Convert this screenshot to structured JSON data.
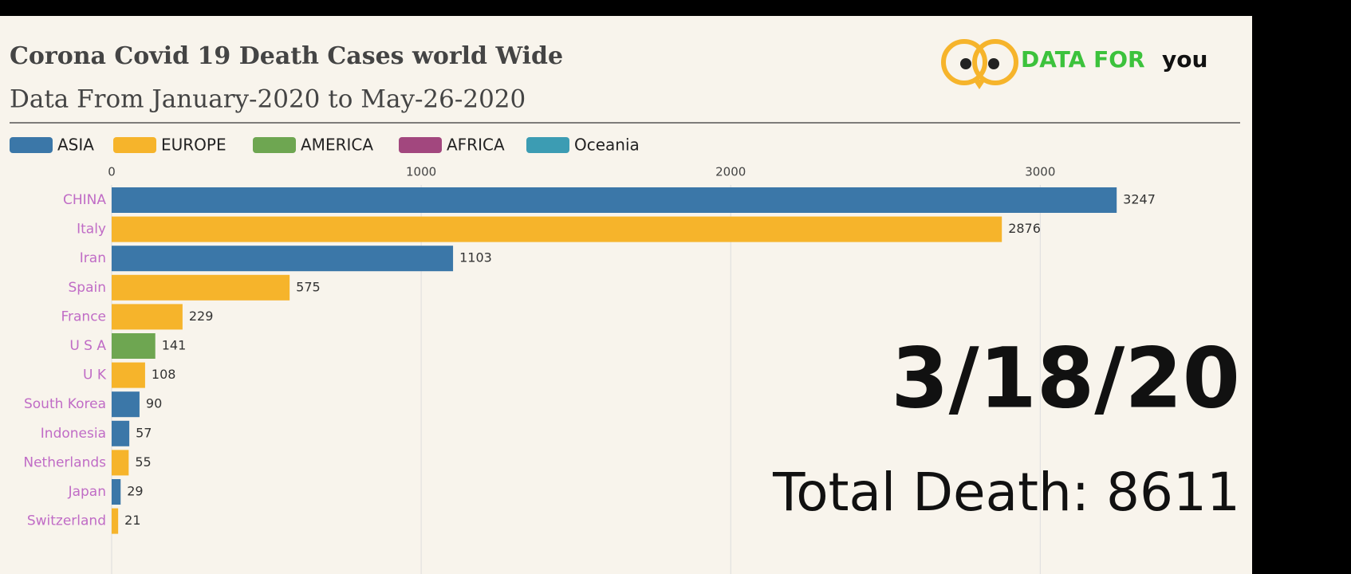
{
  "chart_data": {
    "type": "barh",
    "title": "Corona Covid 19 Death Cases world Wide",
    "subtitle": "Data From January-2020 to May-26-2020",
    "date": "3/18/20",
    "total": "Total Death: 8611",
    "logo": {
      "main": "DATA FOR",
      "tail": "you"
    },
    "categories": [
      "CHINA",
      "Italy",
      "Iran",
      "Spain",
      "France",
      "U S A",
      "U K",
      "South Korea",
      "Indonesia",
      "Netherlands",
      "Japan",
      "Switzerland"
    ],
    "series": [
      {
        "name": "ASIA",
        "color": "#3b77a8",
        "values": [
          3247,
          null,
          1103,
          null,
          null,
          null,
          null,
          90,
          57,
          null,
          29,
          null
        ]
      },
      {
        "name": "EUROPE",
        "color": "#f6b42b",
        "values": [
          null,
          2876,
          null,
          575,
          229,
          null,
          108,
          null,
          null,
          55,
          null,
          21
        ]
      },
      {
        "name": "AMERICA",
        "color": "#6ea651",
        "values": [
          null,
          null,
          null,
          null,
          null,
          141,
          null,
          null,
          null,
          null,
          null,
          null
        ]
      },
      {
        "name": "AFRICA",
        "color": "#a2477e",
        "values": [
          null,
          null,
          null,
          null,
          null,
          null,
          null,
          null,
          null,
          null,
          null,
          null
        ]
      },
      {
        "name": "Oceania",
        "color": "#3c9cb3",
        "values": [
          null,
          null,
          null,
          null,
          null,
          null,
          null,
          null,
          null,
          null,
          null,
          null
        ]
      }
    ],
    "xlim": [
      0,
      3700
    ],
    "xticks": [
      0,
      1000,
      2000,
      3000
    ],
    "grid": true
  }
}
